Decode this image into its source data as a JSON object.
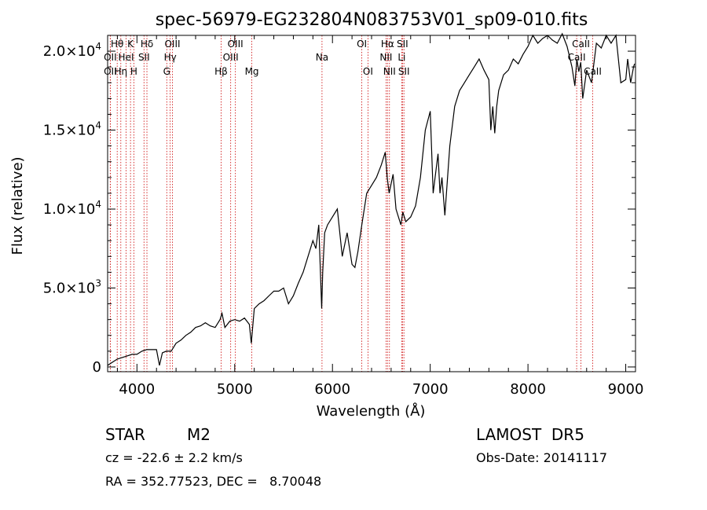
{
  "chart_data": {
    "type": "line",
    "title": "spec-56979-EG232804N083753V01_sp09-010.fits",
    "xlabel": "Wavelength (Å)",
    "ylabel": "Flux (relative)",
    "xlim": [
      3700,
      9100
    ],
    "ylim": [
      -300,
      21000
    ],
    "x_ticks": [
      4000,
      5000,
      6000,
      7000,
      8000,
      9000
    ],
    "x_tick_labels": [
      "4000",
      "5000",
      "6000",
      "7000",
      "8000",
      "9000"
    ],
    "y_ticks": [
      0,
      5000,
      10000,
      15000,
      20000
    ],
    "y_tick_labels": [
      {
        "mantissa": "0",
        "exp": ""
      },
      {
        "mantissa": "5.0×10",
        "exp": "3"
      },
      {
        "mantissa": "1.0×10",
        "exp": "4"
      },
      {
        "mantissa": "1.5×10",
        "exp": "4"
      },
      {
        "mantissa": "2.0×10",
        "exp": "4"
      }
    ],
    "grid": false,
    "series": [
      {
        "x": [
          3700,
          3750,
          3800,
          3850,
          3900,
          3950,
          4000,
          4050,
          4100,
          4150,
          4200,
          4230,
          4260,
          4300,
          4350,
          4400,
          4450,
          4500,
          4550,
          4600,
          4650,
          4700,
          4750,
          4800,
          4850,
          4870,
          4900,
          4950,
          5000,
          5050,
          5100,
          5150,
          5170,
          5200,
          5250,
          5300,
          5350,
          5400,
          5450,
          5500,
          5550,
          5600,
          5650,
          5700,
          5750,
          5800,
          5830,
          5860,
          5890,
          5900,
          5920,
          5950,
          6000,
          6050,
          6100,
          6150,
          6200,
          6230,
          6260,
          6300,
          6350,
          6400,
          6450,
          6500,
          6540,
          6560,
          6580,
          6620,
          6650,
          6700,
          6720,
          6750,
          6800,
          6850,
          6900,
          6950,
          7000,
          7030,
          7060,
          7080,
          7100,
          7120,
          7150,
          7200,
          7250,
          7300,
          7350,
          7400,
          7450,
          7500,
          7550,
          7600,
          7620,
          7640,
          7660,
          7680,
          7700,
          7750,
          7800,
          7850,
          7900,
          7950,
          8000,
          8050,
          8100,
          8150,
          8200,
          8250,
          8300,
          8350,
          8400,
          8450,
          8480,
          8500,
          8520,
          8540,
          8560,
          8600,
          8650,
          8700,
          8750,
          8800,
          8850,
          8900,
          8950,
          9000,
          9020,
          9050,
          9080,
          9090
        ],
        "y": [
          100,
          300,
          500,
          600,
          700,
          800,
          800,
          1000,
          1100,
          1100,
          1100,
          100,
          900,
          1000,
          1000,
          1500,
          1700,
          2000,
          2200,
          2500,
          2600,
          2800,
          2600,
          2500,
          3000,
          3400,
          2500,
          2900,
          3000,
          2900,
          3100,
          2700,
          1500,
          3700,
          4000,
          4200,
          4500,
          4800,
          4800,
          5000,
          4000,
          4500,
          5300,
          6000,
          7000,
          8000,
          7500,
          9000,
          3700,
          6000,
          8500,
          9000,
          9500,
          10000,
          7000,
          8500,
          6500,
          6300,
          7300,
          9000,
          11000,
          11500,
          12000,
          12800,
          13600,
          12000,
          11000,
          12200,
          10000,
          9000,
          9800,
          9200,
          9500,
          10200,
          12000,
          15000,
          16200,
          11000,
          12500,
          13500,
          11000,
          12000,
          9600,
          14000,
          16500,
          17500,
          18000,
          18500,
          19000,
          19500,
          18800,
          18200,
          15000,
          16500,
          14800,
          16500,
          17500,
          18500,
          18800,
          19500,
          19200,
          19800,
          20300,
          21000,
          20500,
          20800,
          21000,
          20700,
          20500,
          21100,
          20300,
          19000,
          17800,
          19500,
          18700,
          19300,
          17000,
          18800,
          18000,
          20500,
          20200,
          21000,
          20500,
          21000,
          18000,
          18200,
          19500,
          18000,
          19000,
          19200
        ]
      }
    ],
    "line_markers": [
      {
        "name": "Hθ",
        "wavelength": 3798,
        "row": 1
      },
      {
        "name": "OII",
        "wavelength": 3727,
        "row": 2
      },
      {
        "name": "OII",
        "wavelength": 3727,
        "row": 3
      },
      {
        "name": "Hη",
        "wavelength": 3835,
        "row": 3
      },
      {
        "name": "HeI",
        "wavelength": 3889,
        "row": 2
      },
      {
        "name": "K",
        "wavelength": 3934,
        "row": 1
      },
      {
        "name": "H",
        "wavelength": 3968,
        "row": 3
      },
      {
        "name": "SII",
        "wavelength": 4072,
        "row": 2
      },
      {
        "name": "Hδ",
        "wavelength": 4102,
        "row": 1
      },
      {
        "name": "OIII",
        "wavelength": 4363,
        "row": 1
      },
      {
        "name": "Hγ",
        "wavelength": 4340,
        "row": 2
      },
      {
        "name": "G",
        "wavelength": 4305,
        "row": 3
      },
      {
        "name": "Hβ",
        "wavelength": 4861,
        "row": 3
      },
      {
        "name": "OIII",
        "wavelength": 5007,
        "row": 1
      },
      {
        "name": "OIII",
        "wavelength": 4959,
        "row": 2
      },
      {
        "name": "Mg",
        "wavelength": 5175,
        "row": 3
      },
      {
        "name": "Na",
        "wavelength": 5893,
        "row": 2
      },
      {
        "name": "OI",
        "wavelength": 6300,
        "row": 1
      },
      {
        "name": "OI",
        "wavelength": 6363,
        "row": 3
      },
      {
        "name": "Hα",
        "wavelength": 6563,
        "row": 1
      },
      {
        "name": "NII",
        "wavelength": 6548,
        "row": 2
      },
      {
        "name": "NII",
        "wavelength": 6583,
        "row": 3
      },
      {
        "name": "SII",
        "wavelength": 6716,
        "row": 1
      },
      {
        "name": "Li",
        "wavelength": 6708,
        "row": 2
      },
      {
        "name": "SII",
        "wavelength": 6731,
        "row": 3
      },
      {
        "name": "CaII",
        "wavelength": 8542,
        "row": 1
      },
      {
        "name": "CaII",
        "wavelength": 8498,
        "row": 2
      },
      {
        "name": "CaII",
        "wavelength": 8662,
        "row": 3
      }
    ]
  },
  "footer": {
    "object_class": "STAR",
    "subclass": "M2",
    "survey": "LAMOST  DR5",
    "cz": "cz = -22.6 ± 2.2 km/s",
    "obs_date": "Obs-Date: 20141117",
    "coords": "RA = 352.77523, DEC =   8.70048"
  },
  "colors": {
    "spectrum": "#000000",
    "line_markers": "#cc0000",
    "axes": "#000000",
    "background": "#ffffff"
  }
}
